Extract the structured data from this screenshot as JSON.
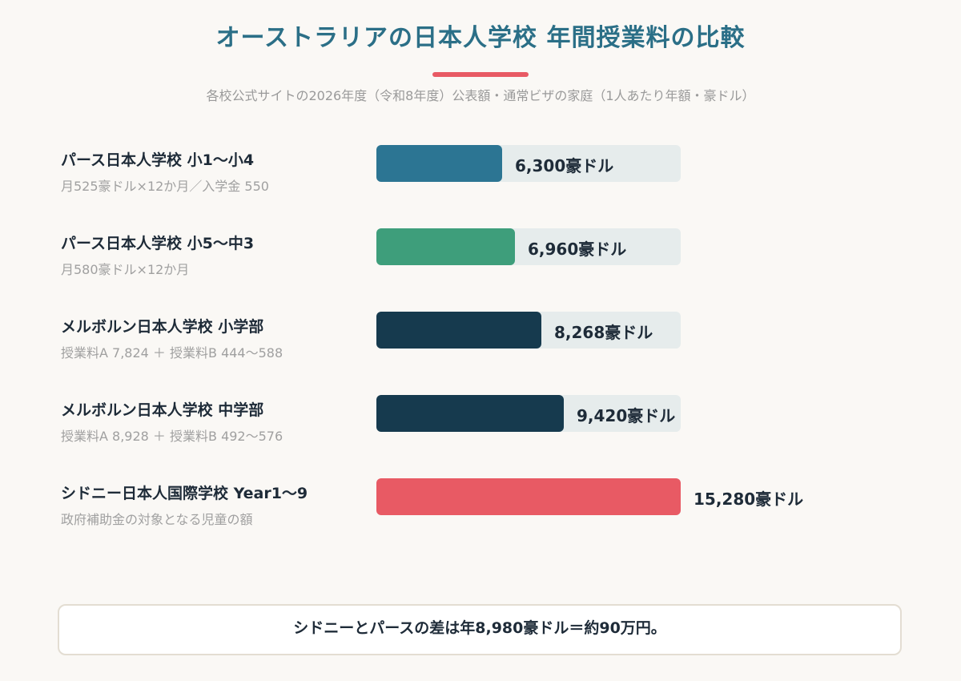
{
  "header": {
    "title": "オーストラリアの日本人学校  年間授業料の比較",
    "subtitle": "各校公式サイトの2026年度（令和8年度）公表額・通常ビザの家庭（1人あたり年額・豪ドル）"
  },
  "colors": {
    "title": "#2b6f87",
    "accent": "#e85a64",
    "track": "#e6ecec"
  },
  "chart_data": {
    "type": "bar",
    "orientation": "horizontal",
    "title": "オーストラリアの日本人学校  年間授業料の比較",
    "subtitle": "各校公式サイトの2026年度（令和8年度）公表額・通常ビザの家庭（1人あたり年額・豪ドル）",
    "unit": "豪ドル",
    "xlim": [
      0,
      15280
    ],
    "grid": false,
    "categories": [
      "パース日本人学校 小1〜小4",
      "パース日本人学校 小5〜中3",
      "メルボルン日本人学校 小学部",
      "メルボルン日本人学校 中学部",
      "シドニー日本人国際学校 Year1〜9"
    ],
    "notes": [
      "月525豪ドル×12か月／入学金 550",
      "月580豪ドル×12か月",
      "授業料A 7,824 ＋ 授業料B 444〜588",
      "授業料A 8,928 ＋ 授業料B 492〜576",
      "政府補助金の対象となる児童の額"
    ],
    "values": [
      6300,
      6960,
      8268,
      9420,
      15280
    ],
    "value_labels": [
      "6,300豪ドル",
      "6,960豪ドル",
      "8,268豪ドル",
      "9,420豪ドル",
      "15,280豪ドル"
    ],
    "bar_colors": [
      "#2c7593",
      "#3e9e7b",
      "#163a4e",
      "#163a4e",
      "#e85a64"
    ]
  },
  "footer": {
    "note": "シドニーとパースの差は年8,980豪ドル＝約90万円。"
  }
}
